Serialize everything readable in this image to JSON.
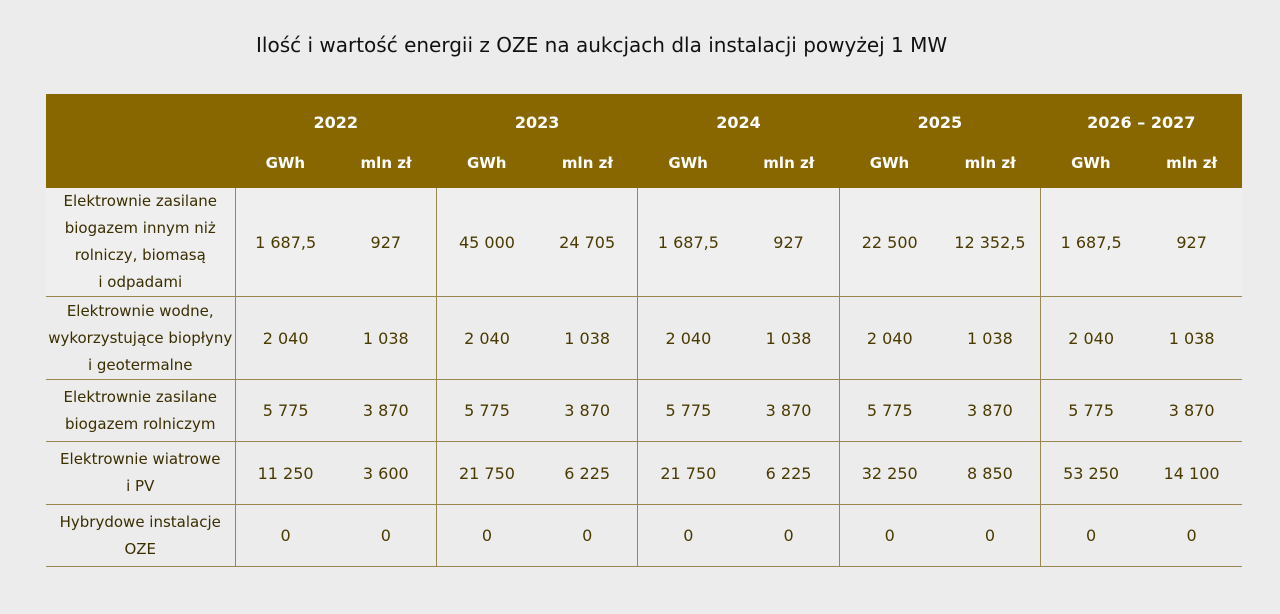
{
  "title": "Ilość i wartość energii z OZE na aukcjach dla instalacji powyżej 1 MW",
  "colors": {
    "header_bg": "#886600",
    "header_text": "#ffffff",
    "cell_text": "#4a3a00",
    "border": "#9a8650",
    "page_bg": "#ececec"
  },
  "table": {
    "years": [
      "2022",
      "2023",
      "2024",
      "2025",
      "2026 – 2027"
    ],
    "units": [
      "GWh",
      "mln zł",
      "GWh",
      "mln zł",
      "GWh",
      "mln zł",
      "GWh",
      "mln zł",
      "GWh",
      "mln zł"
    ],
    "rows": [
      {
        "label_lines": [
          "Elektrownie zasilane",
          "biogazem innym niż",
          "rolniczy, biomasą",
          "i odpadami"
        ],
        "values": [
          "1 687,5",
          "927",
          "45 000",
          "24 705",
          "1 687,5",
          "927",
          "22 500",
          "12 352,5",
          "1 687,5",
          "927"
        ]
      },
      {
        "label_lines": [
          "Elektrownie wodne,",
          "wykorzystujące biopłyny",
          "i geotermalne"
        ],
        "values": [
          "2 040",
          "1 038",
          "2 040",
          "1 038",
          "2 040",
          "1 038",
          "2 040",
          "1 038",
          "2 040",
          "1 038"
        ]
      },
      {
        "label_lines": [
          "Elektrownie zasilane",
          "biogazem rolniczym"
        ],
        "values": [
          "5 775",
          "3 870",
          "5 775",
          "3 870",
          "5 775",
          "3 870",
          "5 775",
          "3 870",
          "5 775",
          "3 870"
        ]
      },
      {
        "label_lines": [
          "Elektrownie wiatrowe",
          "i PV"
        ],
        "values": [
          "11 250",
          "3 600",
          "21 750",
          "6 225",
          "21 750",
          "6 225",
          "32 250",
          "8 850",
          "53 250",
          "14 100"
        ]
      },
      {
        "label_lines": [
          "Hybrydowe instalacje",
          "OZE"
        ],
        "values": [
          "0",
          "0",
          "0",
          "0",
          "0",
          "0",
          "0",
          "0",
          "0",
          "0"
        ]
      }
    ]
  }
}
